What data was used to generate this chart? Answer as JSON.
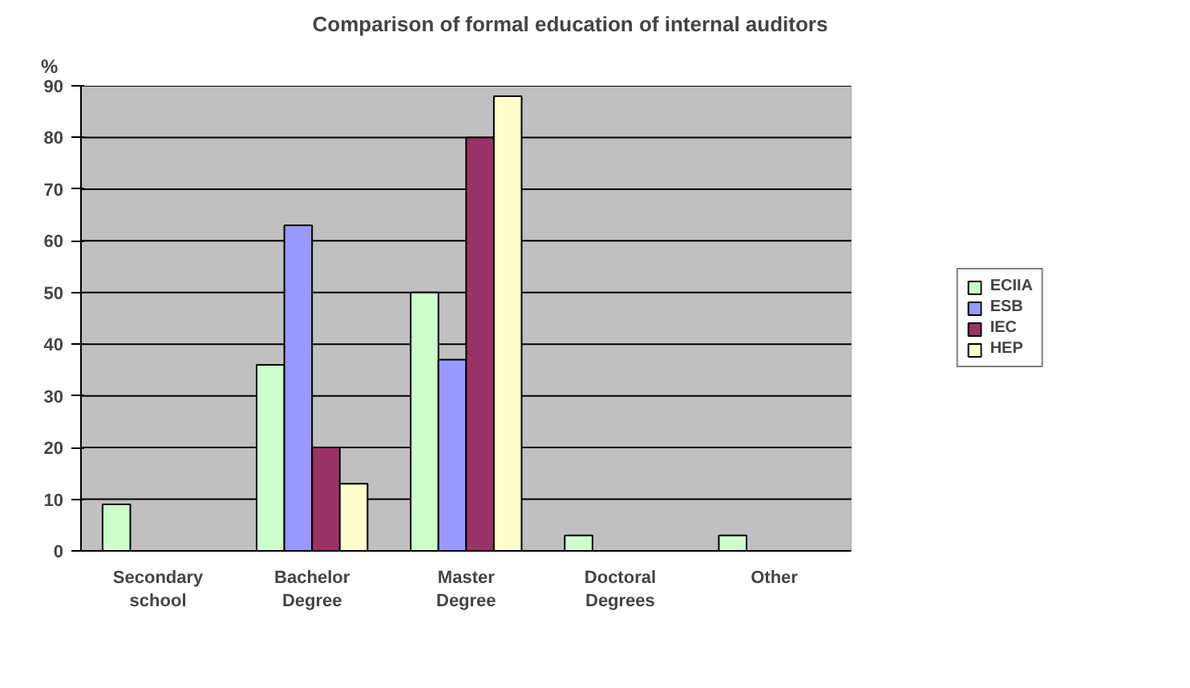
{
  "chart_data": {
    "type": "bar",
    "title": "Comparison of formal education of internal auditors",
    "ylabel": "%",
    "categories": [
      "Secondary school",
      "Bachelor Degree",
      "Master Degree",
      "Doctoral Degrees",
      "Other"
    ],
    "series": [
      {
        "name": "ECIIA",
        "color": "#ccffcc",
        "values": [
          9,
          36,
          50,
          3,
          3
        ]
      },
      {
        "name": "ESB",
        "color": "#9999ff",
        "values": [
          null,
          63,
          37,
          null,
          null
        ]
      },
      {
        "name": "IEC",
        "color": "#993366",
        "values": [
          null,
          20,
          80,
          null,
          null
        ]
      },
      {
        "name": "HEP",
        "color": "#ffffcc",
        "values": [
          null,
          13,
          88,
          null,
          null
        ]
      }
    ],
    "ylim": [
      0,
      90
    ],
    "yticks": [
      0,
      10,
      20,
      30,
      40,
      50,
      60,
      70,
      80,
      90
    ],
    "grid": "y",
    "legend": "right"
  }
}
